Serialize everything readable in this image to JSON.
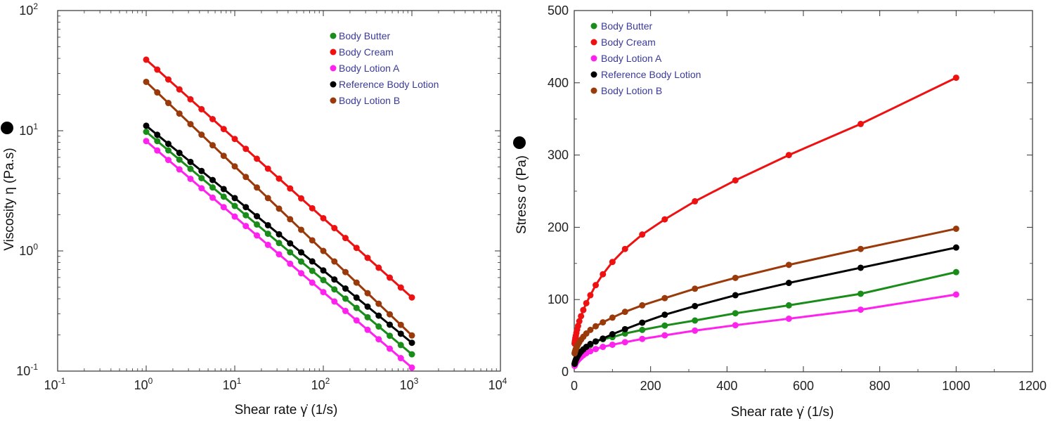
{
  "chart_data": [
    {
      "type": "line",
      "xscale": "log",
      "yscale": "log",
      "xlabel": "Shear rate γ̇ (1/s)",
      "ylabel": "Viscosity η (Pa.s)",
      "xlim": [
        0.1,
        10000
      ],
      "ylim": [
        0.1,
        100
      ],
      "xticks": [
        0.1,
        1,
        10,
        100,
        1000,
        10000
      ],
      "xtick_labels": [
        [
          "10",
          "-1"
        ],
        [
          "10",
          "0"
        ],
        [
          "10",
          "1"
        ],
        [
          "10",
          "2"
        ],
        [
          "10",
          "3"
        ],
        [
          "10",
          "4"
        ]
      ],
      "yticks": [
        0.1,
        1,
        10,
        100
      ],
      "ytick_labels": [
        [
          "10",
          "-1"
        ],
        [
          "10",
          "0"
        ],
        [
          "10",
          "1"
        ],
        [
          "10",
          "2"
        ]
      ],
      "legend_position": "top-right",
      "series": [
        {
          "name": "Body Butter",
          "color": "#1a8c1a",
          "x_start": 1,
          "x_end": 1000,
          "y_start": 9.8,
          "y_end": 0.138,
          "n": 25
        },
        {
          "name": "Body Cream",
          "color": "#ee1111",
          "x_start": 1,
          "x_end": 1000,
          "y_start": 39,
          "y_end": 0.41,
          "n": 25
        },
        {
          "name": "Body Lotion A",
          "color": "#ff22ee",
          "x_start": 1,
          "x_end": 1000,
          "y_start": 8.2,
          "y_end": 0.107,
          "n": 25
        },
        {
          "name": "Reference Body Lotion",
          "color": "#000000",
          "x_start": 1,
          "x_end": 1000,
          "y_start": 11,
          "y_end": 0.172,
          "n": 25
        },
        {
          "name": "Body Lotion B",
          "color": "#9a3a0a",
          "x_start": 1,
          "x_end": 1000,
          "y_start": 25.5,
          "y_end": 0.198,
          "n": 25
        }
      ]
    },
    {
      "type": "line",
      "xlabel": "Shear rate γ̇ (1/s)",
      "ylabel": "Stress σ (Pa)",
      "xlim": [
        0,
        1200
      ],
      "ylim": [
        0,
        500
      ],
      "xticks": [
        0,
        200,
        400,
        600,
        800,
        1000,
        1200
      ],
      "yticks": [
        0,
        100,
        200,
        300,
        400,
        500
      ],
      "legend_position": "top-left",
      "x": [
        1,
        1.33,
        1.78,
        2.37,
        3.16,
        4.22,
        5.62,
        7.5,
        10,
        13.3,
        17.8,
        23.7,
        31.6,
        42.2,
        56.2,
        75,
        100,
        133,
        178,
        237,
        316,
        422,
        562,
        750,
        1000
      ],
      "series": [
        {
          "name": "Body Butter",
          "color": "#1a8c1a",
          "values": [
            9.8,
            10.5,
            11.4,
            12.4,
            13.5,
            14.8,
            16.2,
            17.9,
            19.8,
            22.3,
            25.3,
            28.5,
            32.5,
            37,
            42,
            45,
            48,
            53,
            58,
            64,
            71,
            81,
            92,
            108,
            138
          ]
        },
        {
          "name": "Body Cream",
          "color": "#ee1111",
          "values": [
            39,
            40.5,
            42.3,
            44.5,
            47,
            50,
            53.8,
            58.5,
            63.5,
            70,
            77,
            85.5,
            95,
            106,
            120,
            135,
            152,
            170,
            190,
            211,
            236,
            265,
            300,
            343,
            407
          ]
        },
        {
          "name": "Body Lotion A",
          "color": "#ff22ee",
          "values": [
            8.2,
            8.8,
            9.5,
            10.4,
            11.3,
            12.4,
            13.6,
            15,
            16.5,
            18.3,
            20.5,
            23,
            25.8,
            28.5,
            31.5,
            34.5,
            37.5,
            41,
            45.5,
            50.5,
            57,
            64.5,
            73.5,
            86,
            107
          ]
        },
        {
          "name": "Reference Body Lotion",
          "color": "#000000",
          "values": [
            11,
            11.8,
            12.8,
            13.9,
            15.2,
            16.7,
            18.4,
            20.3,
            22.5,
            25,
            28,
            31,
            34.5,
            38.5,
            42,
            46,
            52,
            59,
            68,
            79,
            91,
            106,
            123,
            144,
            172
          ]
        },
        {
          "name": "Body Lotion B",
          "color": "#9a3a0a",
          "values": [
            25.5,
            26.3,
            27.3,
            28.5,
            29.9,
            31.5,
            33.3,
            35.4,
            38,
            41,
            44.5,
            48.5,
            53,
            58,
            63,
            68.5,
            75,
            83,
            92,
            102,
            115,
            130,
            148,
            170,
            198
          ]
        }
      ]
    }
  ]
}
